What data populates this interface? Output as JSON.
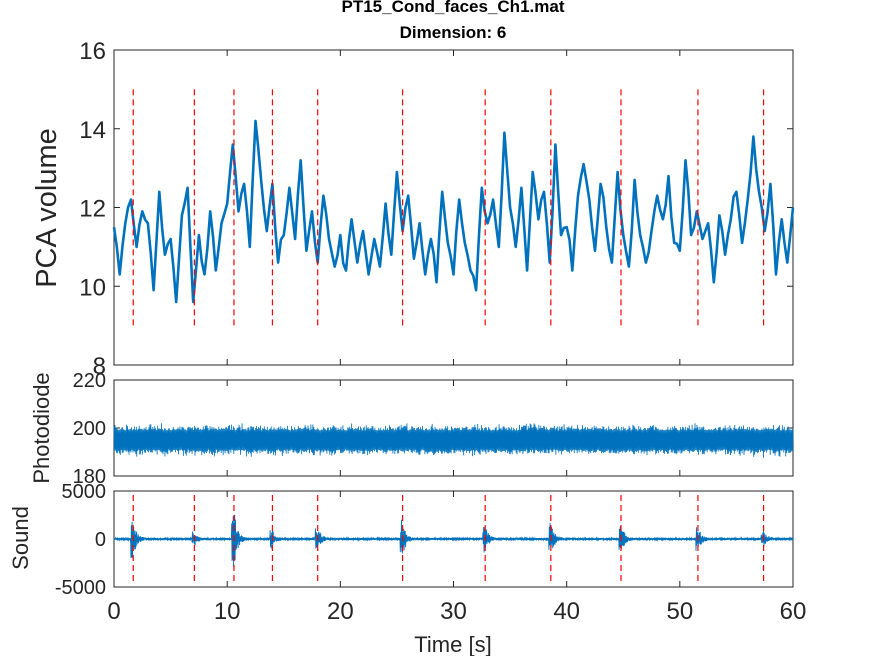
{
  "chart_data": [
    {
      "type": "line",
      "title": "PT15_Cond_faces_Ch1.mat",
      "subtitle": "Dimension: 6",
      "xlabel": "",
      "ylabel": "PCA volume",
      "xlim": [
        0,
        60
      ],
      "ylim": [
        8,
        16
      ],
      "yticks": [
        "8",
        "10",
        "12",
        "14",
        "16"
      ],
      "grid": false,
      "event_markers_s": [
        1.7,
        7.1,
        10.6,
        14.0,
        18.0,
        25.5,
        32.8,
        38.6,
        44.8,
        51.6,
        57.4
      ],
      "series": [
        {
          "color": "#0072BD",
          "x": [
            0,
            0.5,
            1,
            1.5,
            2,
            2.5,
            3,
            3.5,
            4,
            4.5,
            5,
            5.5,
            6,
            6.5,
            7,
            7.5,
            8,
            8.5,
            9,
            9.5,
            10,
            10.5,
            11,
            11.5,
            12,
            12.5,
            13,
            13.5,
            14,
            14.5,
            15,
            15.5,
            16,
            16.5,
            17,
            17.5,
            18,
            18.5,
            19,
            19.5,
            20,
            20.5,
            21,
            21.5,
            22,
            22.5,
            23,
            23.5,
            24,
            24.5,
            25,
            25.5,
            26,
            26.5,
            27,
            27.5,
            28,
            28.5,
            29,
            29.5,
            30,
            30.5,
            31,
            31.5,
            32,
            32.5,
            33,
            33.5,
            34,
            34.5,
            35,
            35.5,
            36,
            36.5,
            37,
            37.5,
            38,
            38.5,
            39,
            39.5,
            40,
            40.5,
            41,
            41.5,
            42,
            42.5,
            43,
            43.5,
            44,
            44.5,
            45,
            45.5,
            46,
            46.5,
            47,
            47.5,
            48,
            48.5,
            49,
            49.5,
            50,
            50.5,
            51,
            51.5,
            52,
            52.5,
            53,
            53.5,
            54,
            54.5,
            55,
            55.5,
            56,
            56.5,
            57,
            57.5,
            58,
            58.5,
            59,
            59.5,
            60
          ],
          "values": [
            11.5,
            10.3,
            11.6,
            12.2,
            11.0,
            11.9,
            11.6,
            9.9,
            12.4,
            10.8,
            11.2,
            9.6,
            11.8,
            12.5,
            9.6,
            11.3,
            10.3,
            11.9,
            10.4,
            11.6,
            12.1,
            13.6,
            11.9,
            12.6,
            11.0,
            14.2,
            12.7,
            11.4,
            12.6,
            10.6,
            11.3,
            12.5,
            11.2,
            13.2,
            10.9,
            11.9,
            10.6,
            12.3,
            11.2,
            10.5,
            11.3,
            10.4,
            11.7,
            10.6,
            11.4,
            10.3,
            11.2,
            10.5,
            12.1,
            10.8,
            12.9,
            11.4,
            12.3,
            10.7,
            11.6,
            10.3,
            11.2,
            10.1,
            12.4,
            11.1,
            10.3,
            12.2,
            11.1,
            10.4,
            9.9,
            12.5,
            11.6,
            12.2,
            11.0,
            13.9,
            12.0,
            11.0,
            12.5,
            10.4,
            12.9,
            11.7,
            12.4,
            10.6,
            13.6,
            11.3,
            11.5,
            10.4,
            12.3,
            13.1,
            12.2,
            10.9,
            12.6,
            11.5,
            10.6,
            12.9,
            11.3,
            10.5,
            12.7,
            11.3,
            10.6,
            11.4,
            12.3,
            11.7,
            12.8,
            11.1,
            10.9,
            13.2,
            11.3,
            11.9,
            11.2,
            11.6,
            10.1,
            11.8,
            10.8,
            11.7,
            12.4,
            11.1,
            12.2,
            13.8,
            12.4,
            11.4,
            12.6,
            10.3,
            11.7,
            10.6,
            12.0
          ]
        }
      ]
    },
    {
      "type": "line",
      "title": "",
      "xlabel": "",
      "ylabel": "Photodiode",
      "xlim": [
        0,
        60
      ],
      "ylim": [
        180,
        220
      ],
      "yticks": [
        "180",
        "200",
        "220"
      ],
      "grid": false,
      "series": [
        {
          "color": "#0072BD",
          "description_values": {
            "center": 195,
            "band": [
              186,
              204
            ]
          }
        }
      ]
    },
    {
      "type": "line",
      "title": "",
      "xlabel": "Time [s]",
      "ylabel": "Sound",
      "xlim": [
        0,
        60
      ],
      "ylim": [
        -5000,
        5000
      ],
      "xticks": [
        "0",
        "10",
        "20",
        "30",
        "40",
        "50",
        "60"
      ],
      "yticks": [
        "-5000",
        "0",
        "5000"
      ],
      "grid": false,
      "event_markers_s": [
        1.7,
        7.1,
        10.6,
        14.0,
        18.0,
        25.5,
        32.8,
        38.6,
        44.8,
        51.6,
        57.4
      ],
      "series": [
        {
          "color": "#0072BD",
          "burst_times_s": [
            1.7,
            7.1,
            10.6,
            14.0,
            18.0,
            25.5,
            32.8,
            38.6,
            44.8,
            51.6,
            57.4
          ],
          "burst_peaks": [
            1900,
            700,
            3300,
            900,
            1300,
            1900,
            1300,
            1800,
            1600,
            1300,
            900
          ]
        }
      ]
    }
  ],
  "colors": {
    "line": "#0072BD",
    "marker": "#FF0000",
    "axis": "#262626"
  }
}
